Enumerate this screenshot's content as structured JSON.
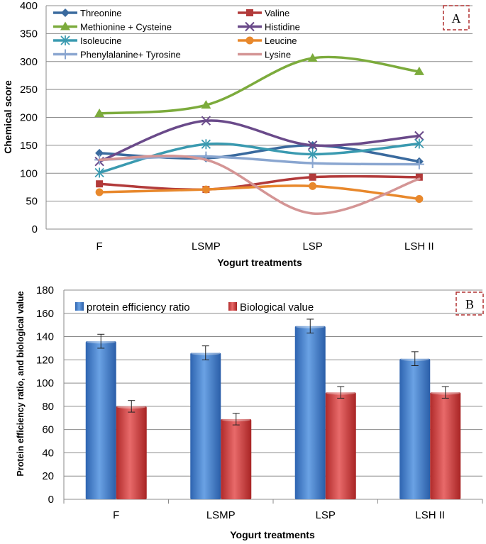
{
  "chart_data": [
    {
      "type": "line",
      "panel": "A",
      "title": "",
      "xlabel": "Yogurt treatments",
      "ylabel": "Chemical score",
      "categories": [
        "F",
        "LSMP",
        "LSP",
        "LSH II"
      ],
      "ylim": [
        0,
        400
      ],
      "yticks": [
        0,
        50,
        100,
        150,
        200,
        250,
        300,
        350,
        400
      ],
      "grid": true,
      "legend_position": "top",
      "series": [
        {
          "name": "Threonine",
          "marker": "diamond",
          "color": "#3a6a9e",
          "values": [
            136,
            127,
            150,
            121
          ]
        },
        {
          "name": "Valine",
          "marker": "square",
          "color": "#b23a3a",
          "values": [
            81,
            71,
            93,
            93
          ]
        },
        {
          "name": "Methionine + Cysteine",
          "marker": "triangle",
          "color": "#7cab3c",
          "values": [
            207,
            222,
            306,
            282
          ]
        },
        {
          "name": "Histidine",
          "marker": "x",
          "color": "#6a4a8a",
          "values": [
            121,
            194,
            150,
            167
          ]
        },
        {
          "name": "Isoleucine",
          "marker": "star",
          "color": "#3a9ab0",
          "values": [
            101,
            152,
            134,
            153
          ]
        },
        {
          "name": "Leucine",
          "marker": "circle",
          "color": "#e8882c",
          "values": [
            66,
            71,
            77,
            54
          ]
        },
        {
          "name": "Phenylalanine+ Tyrosine",
          "marker": "plus",
          "color": "#8aa6d0",
          "values": [
            124,
            130,
            118,
            116
          ]
        },
        {
          "name": "Lysine",
          "marker": "none",
          "color": "#d49595",
          "values": [
            124,
            124,
            28,
            90
          ]
        }
      ]
    },
    {
      "type": "bar",
      "panel": "B",
      "title": "",
      "xlabel": "Yogurt treatments",
      "ylabel": "Protein efficiency ratio, and biological value",
      "categories": [
        "F",
        "LSMP",
        "LSP",
        "LSH II"
      ],
      "ylim": [
        0,
        180
      ],
      "yticks": [
        0,
        20,
        40,
        60,
        80,
        100,
        120,
        140,
        160,
        180
      ],
      "grid": true,
      "legend_position": "top",
      "series": [
        {
          "name": "protein efficiency ratio",
          "color": "#4a86d0",
          "values": [
            136,
            126,
            149,
            121
          ],
          "errors": [
            6,
            6,
            6,
            6
          ]
        },
        {
          "name": "Biological value",
          "color": "#cc3a3a",
          "values": [
            80,
            69,
            92,
            92
          ],
          "errors": [
            5,
            5,
            5,
            5
          ]
        }
      ]
    }
  ]
}
